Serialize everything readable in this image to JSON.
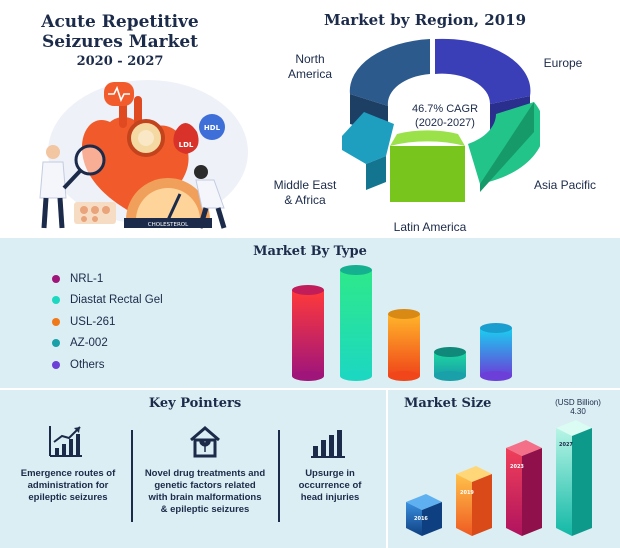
{
  "header": {
    "title": "Acute Repetitive Seizures Market",
    "years": "2020 - 2027"
  },
  "region": {
    "title": "Market by Region, 2019",
    "cagr_line1": "46.7% CAGR",
    "cagr_line2": "(2020-2027)",
    "labels": {
      "north_america": "North America",
      "europe": "Europe",
      "asia_pacific": "Asia Pacific",
      "latin_america": "Latin America",
      "mea": "Middle East & Africa"
    },
    "colors": {
      "north_america": "#2c5a8c",
      "europe": "#3a3fb8",
      "asia_pacific": "#22c48a",
      "latin_america": "#7ed321",
      "mea": "#1e9fc0"
    }
  },
  "illustration": {
    "ldl": "LDL",
    "hdl": "HDL",
    "gauge": "CHOLESTEROL"
  },
  "type": {
    "title": "Market By Type",
    "items": [
      {
        "label": "NRL-1",
        "color": "#a0157a"
      },
      {
        "label": "Diastat Rectal Gel",
        "color": "#1dd8c0"
      },
      {
        "label": "USL-261",
        "color": "#f07a1a"
      },
      {
        "label": "AZ-002",
        "color": "#19a0a8"
      },
      {
        "label": "Others",
        "color": "#6b3fd8"
      }
    ]
  },
  "key_pointers": {
    "title": "Key Pointers",
    "items": [
      {
        "text": "Emergence routes of administration for epileptic seizures",
        "icon": "growth-chart-icon"
      },
      {
        "text": "Novel drug treatments and genetic factors related with brain malformations & epileptic seizures",
        "icon": "home-plant-icon"
      },
      {
        "text": "Upsurge in occurrence of head injuries",
        "icon": "bar-chart-icon"
      }
    ]
  },
  "market_size": {
    "title": "Market Size",
    "unit": "(USD Billion)",
    "value_label": "4.30",
    "years": [
      "2016",
      "2019",
      "2023",
      "2027"
    ],
    "colors": [
      "#1a72c0",
      "#f29a2e",
      "#d81b4a",
      "#1cc3b2"
    ]
  }
}
